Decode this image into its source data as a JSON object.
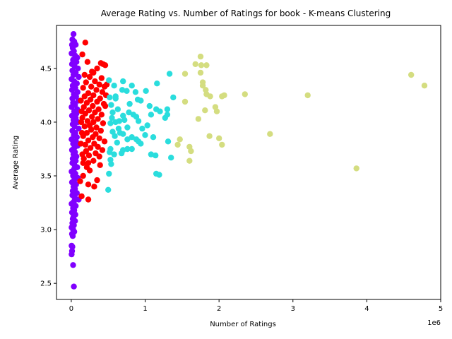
{
  "chart_data": {
    "type": "scatter",
    "title": "Average Rating vs. Number of Ratings for book - K-means Clustering",
    "xlabel": "Number of Ratings",
    "ylabel": "Average Rating",
    "x_offset_label": "1e6",
    "x_scale": 1000000,
    "xlim": [
      -200000,
      5000000
    ],
    "ylim": [
      2.35,
      4.9
    ],
    "xticks": [
      0,
      1000000,
      2000000,
      3000000,
      4000000,
      5000000
    ],
    "xtick_labels": [
      "0",
      "1",
      "2",
      "3",
      "4",
      "5"
    ],
    "yticks": [
      2.5,
      3.0,
      3.5,
      4.0,
      4.5
    ],
    "ytick_labels": [
      "2.5",
      "3.0",
      "3.5",
      "4.0",
      "4.5"
    ],
    "grid": false,
    "legend": "none",
    "series": [
      {
        "color": "#8000ff",
        "points": [
          [
            30000,
            4.82
          ],
          [
            15000,
            4.77
          ],
          [
            40000,
            4.75
          ],
          [
            10000,
            4.72
          ],
          [
            60000,
            4.72
          ],
          [
            20000,
            4.69
          ],
          [
            35000,
            4.66
          ],
          [
            5000,
            4.64
          ],
          [
            50000,
            4.62
          ],
          [
            80000,
            4.6
          ],
          [
            25000,
            4.58
          ],
          [
            70000,
            4.56
          ],
          [
            10000,
            4.54
          ],
          [
            45000,
            4.52
          ],
          [
            90000,
            4.5
          ],
          [
            15000,
            4.48
          ],
          [
            60000,
            4.46
          ],
          [
            30000,
            4.44
          ],
          [
            100000,
            4.42
          ],
          [
            5000,
            4.4
          ],
          [
            40000,
            4.38
          ],
          [
            75000,
            4.36
          ],
          [
            20000,
            4.34
          ],
          [
            55000,
            4.32
          ],
          [
            10000,
            4.3
          ],
          [
            85000,
            4.28
          ],
          [
            35000,
            4.26
          ],
          [
            65000,
            4.24
          ],
          [
            15000,
            4.22
          ],
          [
            95000,
            4.2
          ],
          [
            25000,
            4.18
          ],
          [
            50000,
            4.16
          ],
          [
            5000,
            4.14
          ],
          [
            80000,
            4.12
          ],
          [
            40000,
            4.1
          ],
          [
            70000,
            4.08
          ],
          [
            10000,
            4.06
          ],
          [
            60000,
            4.04
          ],
          [
            30000,
            4.02
          ],
          [
            90000,
            4.0
          ],
          [
            20000,
            3.98
          ],
          [
            45000,
            3.96
          ],
          [
            100000,
            3.94
          ],
          [
            15000,
            3.92
          ],
          [
            55000,
            3.9
          ],
          [
            35000,
            3.88
          ],
          [
            75000,
            3.86
          ],
          [
            5000,
            3.84
          ],
          [
            65000,
            3.82
          ],
          [
            25000,
            3.8
          ],
          [
            85000,
            3.78
          ],
          [
            40000,
            3.76
          ],
          [
            10000,
            3.74
          ],
          [
            50000,
            3.72
          ],
          [
            30000,
            3.7
          ],
          [
            70000,
            3.68
          ],
          [
            20000,
            3.66
          ],
          [
            60000,
            3.64
          ],
          [
            15000,
            3.62
          ],
          [
            45000,
            3.6
          ],
          [
            80000,
            3.58
          ],
          [
            35000,
            3.56
          ],
          [
            5000,
            3.54
          ],
          [
            55000,
            3.52
          ],
          [
            25000,
            3.5
          ],
          [
            90000,
            3.48
          ],
          [
            40000,
            3.46
          ],
          [
            10000,
            3.44
          ],
          [
            65000,
            3.42
          ],
          [
            30000,
            3.4
          ],
          [
            50000,
            3.38
          ],
          [
            20000,
            3.36
          ],
          [
            75000,
            3.34
          ],
          [
            15000,
            3.32
          ],
          [
            45000,
            3.3
          ],
          [
            100000,
            3.28
          ],
          [
            35000,
            3.26
          ],
          [
            5000,
            3.24
          ],
          [
            60000,
            3.22
          ],
          [
            25000,
            3.2
          ],
          [
            40000,
            3.18
          ],
          [
            10000,
            3.16
          ],
          [
            55000,
            3.14
          ],
          [
            30000,
            3.12
          ],
          [
            20000,
            3.1
          ],
          [
            50000,
            3.08
          ],
          [
            15000,
            3.06
          ],
          [
            35000,
            3.04
          ],
          [
            5000,
            3.02
          ],
          [
            25000,
            3.0
          ],
          [
            40000,
            2.98
          ],
          [
            10000,
            2.96
          ],
          [
            20000,
            2.94
          ],
          [
            5000,
            2.85
          ],
          [
            15000,
            2.84
          ],
          [
            10000,
            2.8
          ],
          [
            5000,
            2.77
          ],
          [
            25000,
            2.67
          ],
          [
            35000,
            2.47
          ]
        ]
      },
      {
        "color": "#ff0000",
        "points": [
          [
            190000,
            4.74
          ],
          [
            150000,
            4.63
          ],
          [
            280000,
            4.47
          ],
          [
            430000,
            4.54
          ],
          [
            460000,
            4.53
          ],
          [
            220000,
            4.56
          ],
          [
            350000,
            4.5
          ],
          [
            400000,
            4.55
          ],
          [
            300000,
            4.46
          ],
          [
            180000,
            4.44
          ],
          [
            250000,
            4.42
          ],
          [
            410000,
            4.41
          ],
          [
            320000,
            4.38
          ],
          [
            200000,
            4.37
          ],
          [
            380000,
            4.35
          ],
          [
            450000,
            4.33
          ],
          [
            270000,
            4.33
          ],
          [
            160000,
            4.32
          ],
          [
            340000,
            4.3
          ],
          [
            420000,
            4.28
          ],
          [
            230000,
            4.27
          ],
          [
            300000,
            4.25
          ],
          [
            180000,
            4.24
          ],
          [
            390000,
            4.22
          ],
          [
            260000,
            4.21
          ],
          [
            350000,
            4.19
          ],
          [
            210000,
            4.18
          ],
          [
            440000,
            4.17
          ],
          [
            290000,
            4.15
          ],
          [
            170000,
            4.14
          ],
          [
            370000,
            4.12
          ],
          [
            240000,
            4.11
          ],
          [
            320000,
            4.09
          ],
          [
            190000,
            4.08
          ],
          [
            410000,
            4.07
          ],
          [
            280000,
            4.05
          ],
          [
            150000,
            4.04
          ],
          [
            360000,
            4.03
          ],
          [
            220000,
            4.01
          ],
          [
            300000,
            4.0
          ],
          [
            430000,
            3.99
          ],
          [
            250000,
            3.97
          ],
          [
            180000,
            3.96
          ],
          [
            340000,
            3.95
          ],
          [
            270000,
            3.93
          ],
          [
            400000,
            3.92
          ],
          [
            210000,
            3.9
          ],
          [
            330000,
            3.89
          ],
          [
            160000,
            3.87
          ],
          [
            290000,
            3.86
          ],
          [
            380000,
            3.85
          ],
          [
            230000,
            3.83
          ],
          [
            450000,
            3.82
          ],
          [
            310000,
            3.8
          ],
          [
            190000,
            3.79
          ],
          [
            360000,
            3.77
          ],
          [
            260000,
            3.76
          ],
          [
            420000,
            3.74
          ],
          [
            200000,
            3.73
          ],
          [
            330000,
            3.71
          ],
          [
            240000,
            3.69
          ],
          [
            380000,
            3.68
          ],
          [
            170000,
            3.66
          ],
          [
            300000,
            3.64
          ],
          [
            230000,
            3.62
          ],
          [
            390000,
            3.6
          ],
          [
            210000,
            3.58
          ],
          [
            250000,
            3.55
          ],
          [
            160000,
            3.5
          ],
          [
            120000,
            3.45
          ],
          [
            350000,
            3.46
          ],
          [
            230000,
            3.42
          ],
          [
            310000,
            3.4
          ],
          [
            140000,
            3.31
          ],
          [
            230000,
            3.28
          ],
          [
            130000,
            4.2
          ],
          [
            140000,
            4.1
          ],
          [
            135000,
            4.0
          ],
          [
            145000,
            3.9
          ],
          [
            130000,
            3.8
          ],
          [
            150000,
            3.7
          ],
          [
            160000,
            3.62
          ],
          [
            480000,
            4.35
          ],
          [
            470000,
            4.25
          ],
          [
            460000,
            4.15
          ]
        ]
      },
      {
        "color": "#2adddd",
        "points": [
          [
            1330000,
            4.45
          ],
          [
            510000,
            4.39
          ],
          [
            700000,
            4.38
          ],
          [
            580000,
            4.34
          ],
          [
            820000,
            4.34
          ],
          [
            1160000,
            4.36
          ],
          [
            690000,
            4.3
          ],
          [
            750000,
            4.29
          ],
          [
            870000,
            4.28
          ],
          [
            1010000,
            4.29
          ],
          [
            520000,
            4.23
          ],
          [
            600000,
            4.24
          ],
          [
            1380000,
            4.23
          ],
          [
            900000,
            4.21
          ],
          [
            940000,
            4.2
          ],
          [
            790000,
            4.17
          ],
          [
            1060000,
            4.15
          ],
          [
            1150000,
            4.12
          ],
          [
            1300000,
            4.12
          ],
          [
            630000,
            4.12
          ],
          [
            1200000,
            4.1
          ],
          [
            560000,
            4.09
          ],
          [
            780000,
            4.09
          ],
          [
            840000,
            4.07
          ],
          [
            700000,
            4.06
          ],
          [
            1080000,
            4.07
          ],
          [
            1300000,
            4.07
          ],
          [
            880000,
            4.05
          ],
          [
            1270000,
            4.04
          ],
          [
            550000,
            4.04
          ],
          [
            720000,
            4.02
          ],
          [
            650000,
            4.01
          ],
          [
            910000,
            4.01
          ],
          [
            530000,
            3.99
          ],
          [
            1030000,
            3.97
          ],
          [
            760000,
            3.95
          ],
          [
            640000,
            3.94
          ],
          [
            960000,
            3.94
          ],
          [
            560000,
            3.91
          ],
          [
            700000,
            3.89
          ],
          [
            1000000,
            3.88
          ],
          [
            590000,
            3.87
          ],
          [
            820000,
            3.86
          ],
          [
            880000,
            3.84
          ],
          [
            1110000,
            3.86
          ],
          [
            760000,
            3.84
          ],
          [
            910000,
            3.82
          ],
          [
            620000,
            3.81
          ],
          [
            1310000,
            3.82
          ],
          [
            940000,
            3.8
          ],
          [
            760000,
            3.75
          ],
          [
            820000,
            3.75
          ],
          [
            530000,
            3.75
          ],
          [
            700000,
            3.74
          ],
          [
            520000,
            3.72
          ],
          [
            680000,
            3.71
          ],
          [
            1080000,
            3.7
          ],
          [
            1140000,
            3.69
          ],
          [
            1350000,
            3.67
          ],
          [
            540000,
            3.61
          ],
          [
            1150000,
            3.52
          ],
          [
            1190000,
            3.51
          ],
          [
            510000,
            3.52
          ],
          [
            500000,
            3.37
          ],
          [
            600000,
            4.22
          ],
          [
            540000,
            4.16
          ],
          [
            600000,
            4.0
          ],
          [
            660000,
            3.9
          ],
          [
            580000,
            3.7
          ],
          [
            530000,
            3.65
          ]
        ]
      },
      {
        "color": "#d4dd80",
        "points": [
          [
            1750000,
            4.61
          ],
          [
            1680000,
            4.54
          ],
          [
            1760000,
            4.53
          ],
          [
            1830000,
            4.53
          ],
          [
            1540000,
            4.45
          ],
          [
            1750000,
            4.46
          ],
          [
            4600000,
            4.44
          ],
          [
            4780000,
            4.34
          ],
          [
            1780000,
            4.37
          ],
          [
            1780000,
            4.34
          ],
          [
            1820000,
            4.3
          ],
          [
            1830000,
            4.26
          ],
          [
            2070000,
            4.25
          ],
          [
            2040000,
            4.24
          ],
          [
            2350000,
            4.26
          ],
          [
            3200000,
            4.25
          ],
          [
            1880000,
            4.24
          ],
          [
            1540000,
            4.19
          ],
          [
            1950000,
            4.14
          ],
          [
            1810000,
            4.11
          ],
          [
            1970000,
            4.1
          ],
          [
            1720000,
            4.03
          ],
          [
            2690000,
            3.89
          ],
          [
            1870000,
            3.87
          ],
          [
            2000000,
            3.85
          ],
          [
            1470000,
            3.84
          ],
          [
            1440000,
            3.79
          ],
          [
            2040000,
            3.79
          ],
          [
            1600000,
            3.77
          ],
          [
            1620000,
            3.73
          ],
          [
            1600000,
            3.64
          ],
          [
            3860000,
            3.57
          ]
        ]
      }
    ]
  }
}
